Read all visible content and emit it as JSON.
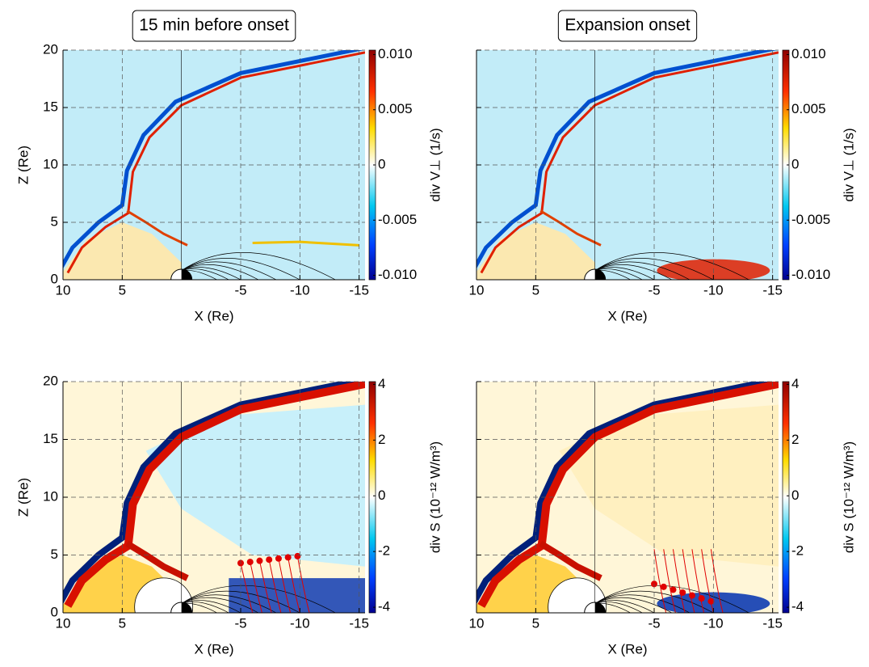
{
  "chart_data": [
    {
      "type": "heatmap",
      "title": "15 min before onset",
      "xlabel": "X (Re)",
      "ylabel": "Z (Re)",
      "xlim": [
        10,
        -15.5
      ],
      "ylim": [
        0,
        20
      ],
      "xticks": [
        10,
        5,
        -5,
        -10,
        -15
      ],
      "yticks": [
        0,
        5,
        10,
        15,
        20
      ],
      "show_ytick_labels": true,
      "grid": true,
      "colorbar": {
        "label": "div V⊥ (1/s)",
        "lim": [
          -0.0104,
          0.0104
        ],
        "ticks": [
          {
            "value": 0.01,
            "label": "0.010"
          },
          0.005,
          0,
          -0.005,
          {
            "value": -0.01,
            "label": "-0.010"
          }
        ]
      }
    },
    {
      "type": "heatmap",
      "title": "Expansion onset",
      "xlabel": "X (Re)",
      "xlim": [
        10,
        -15.5
      ],
      "ylim": [
        0,
        20
      ],
      "xticks": [
        10,
        5,
        -5,
        -10,
        -15
      ],
      "yticks": [
        0,
        5,
        10,
        15,
        20
      ],
      "show_ytick_labels": false,
      "grid": true,
      "colorbar": {
        "label": "div V⊥ (1/s)",
        "lim": [
          -0.0104,
          0.0104
        ],
        "ticks": [
          {
            "value": 0.01,
            "label": "0.010"
          },
          0.005,
          0,
          -0.005,
          {
            "value": -0.01,
            "label": "-0.010"
          }
        ]
      }
    },
    {
      "type": "heatmap",
      "xlabel": "X (Re)",
      "ylabel": "Z (Re)",
      "xlim": [
        10,
        -15.5
      ],
      "ylim": [
        0,
        20
      ],
      "xticks": [
        10,
        5,
        -5,
        -10,
        -15
      ],
      "yticks": [
        0,
        5,
        10,
        15,
        20
      ],
      "show_ytick_labels": true,
      "grid": true,
      "colorbar": {
        "label": "div S (10⁻¹² W/m³)",
        "lim": [
          -4.2,
          4.1
        ],
        "ticks": [
          4,
          2,
          0,
          -2,
          -4
        ]
      }
    },
    {
      "type": "heatmap",
      "xlabel": "X (Re)",
      "xlim": [
        10,
        -15.5
      ],
      "ylim": [
        0,
        20
      ],
      "xticks": [
        10,
        5,
        -5,
        -10,
        -15
      ],
      "yticks": [
        0,
        5,
        10,
        15,
        20
      ],
      "show_ytick_labels": false,
      "grid": true,
      "colorbar": {
        "label": "div S (10⁻¹² W/m³)",
        "lim": [
          -4.2,
          4.1
        ],
        "ticks": [
          4,
          2,
          0,
          -2,
          -4
        ]
      }
    }
  ]
}
